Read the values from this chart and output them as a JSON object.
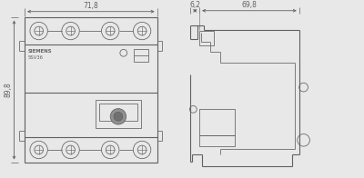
{
  "bg_color": "#e8e8e8",
  "line_color": "#606060",
  "dim_color": "#606060",
  "text_color": "#606060",
  "dim_71_8": "71,8",
  "dim_89_8": "89,8",
  "dim_6_2": "6,2",
  "dim_69_8": "69,8",
  "label_siemens": "SIEMENS",
  "label_model": "5SV36",
  "lw_main": 0.8,
  "lw_detail": 0.55,
  "lw_thin": 0.4,
  "fontsize_dim": 5.5,
  "fontsize_label": 3.8
}
